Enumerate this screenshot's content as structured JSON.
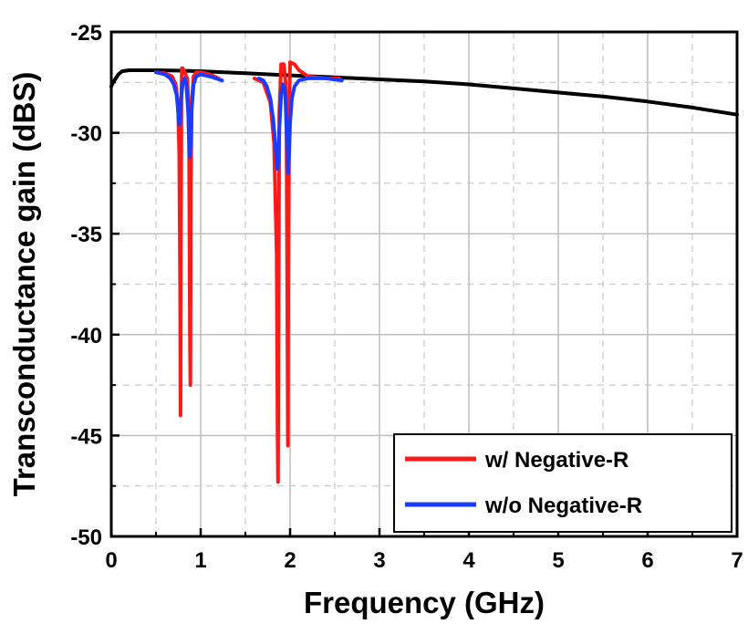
{
  "chart_data": {
    "type": "line",
    "title": "",
    "xlabel": "Frequency (GHz)",
    "ylabel": "Transconductance gain (dBS)",
    "xlim": [
      0,
      7
    ],
    "ylim": [
      -50,
      -25
    ],
    "xticks": [
      0,
      1,
      2,
      3,
      4,
      5,
      6,
      7
    ],
    "yticks": [
      -25,
      -30,
      -35,
      -40,
      -45,
      -50
    ],
    "xtick_labels": [
      "0",
      "1",
      "2",
      "3",
      "4",
      "5",
      "6",
      "7"
    ],
    "ytick_labels": [
      "-25",
      "-30",
      "-35",
      "-40",
      "-45",
      "-50"
    ],
    "grid": true,
    "legend_position": "bottom-right",
    "legend_entries": [
      "w/ Negative-R",
      "w/o Negative-R"
    ],
    "series": [
      {
        "name": "w/ Negative-R",
        "color": "#ff1a1a",
        "legend": true,
        "segments": [
          {
            "x": [
              0.5,
              0.6,
              0.68,
              0.72,
              0.745,
              0.76,
              0.77,
              0.775,
              0.78,
              0.785,
              0.79,
              0.8,
              0.82,
              0.85,
              0.86,
              0.87,
              0.88,
              0.885,
              0.89,
              0.9,
              0.92,
              0.95,
              1.0,
              1.1,
              1.2
            ],
            "y": [
              -27.0,
              -27.05,
              -27.2,
              -27.6,
              -28.5,
              -31.0,
              -38.0,
              -44.0,
              -35.0,
              -28.0,
              -26.8,
              -26.8,
              -27.0,
              -27.3,
              -28.2,
              -31.0,
              -40.0,
              -42.5,
              -33.0,
              -28.5,
              -27.2,
              -27.0,
              -27.0,
              -27.1,
              -27.3
            ]
          },
          {
            "x": [
              1.6,
              1.7,
              1.78,
              1.82,
              1.85,
              1.86,
              1.865,
              1.87,
              1.88,
              1.9,
              1.93,
              1.95,
              1.96,
              1.97,
              1.975,
              1.98,
              1.99,
              2.0,
              2.05,
              2.1,
              2.2,
              2.4,
              2.55
            ],
            "y": [
              -27.3,
              -27.5,
              -28.5,
              -30.5,
              -36.0,
              -45.0,
              -47.3,
              -40.0,
              -29.0,
              -26.6,
              -26.6,
              -27.5,
              -30.0,
              -40.0,
              -45.5,
              -38.0,
              -29.0,
              -26.5,
              -26.6,
              -26.9,
              -27.2,
              -27.3,
              -27.3
            ]
          }
        ]
      },
      {
        "name": "w/o Negative-R",
        "color": "#1a3cff",
        "legend": true,
        "segments": [
          {
            "x": [
              0.5,
              0.6,
              0.66,
              0.7,
              0.73,
              0.75,
              0.76,
              0.77,
              0.78,
              0.8,
              0.82,
              0.84,
              0.86,
              0.87,
              0.88,
              0.89,
              0.9,
              0.92,
              0.95,
              1.0,
              1.1,
              1.24
            ],
            "y": [
              -27.0,
              -27.1,
              -27.3,
              -27.6,
              -28.1,
              -29.0,
              -29.6,
              -29.4,
              -28.4,
              -27.5,
              -27.3,
              -27.6,
              -29.0,
              -30.4,
              -31.2,
              -30.3,
              -28.8,
              -27.6,
              -27.2,
              -27.1,
              -27.2,
              -27.4
            ]
          },
          {
            "x": [
              1.65,
              1.7,
              1.74,
              1.78,
              1.81,
              1.83,
              1.85,
              1.86,
              1.87,
              1.88,
              1.9,
              1.92,
              1.94,
              1.95,
              1.96,
              1.97,
              1.98,
              1.99,
              2.0,
              2.02,
              2.05,
              2.1,
              2.2,
              2.4,
              2.58
            ],
            "y": [
              -27.3,
              -27.4,
              -27.7,
              -28.3,
              -29.3,
              -30.3,
              -31.4,
              -31.8,
              -31.2,
              -29.8,
              -28.1,
              -27.6,
              -27.8,
              -28.5,
              -29.8,
              -31.5,
              -32.0,
              -31.0,
              -29.5,
              -28.3,
              -27.7,
              -27.4,
              -27.3,
              -27.3,
              -27.4
            ]
          }
        ]
      },
      {
        "name": "",
        "color": "#000000",
        "legend": false,
        "segments": [
          {
            "x": [
              0.0,
              0.02,
              0.05,
              0.08,
              0.12,
              0.2,
              0.3,
              0.5,
              0.8,
              1.0,
              1.5,
              2.0,
              2.5,
              3.0,
              3.5,
              4.0,
              4.5,
              5.0,
              5.5,
              6.0,
              6.5,
              7.0
            ],
            "y": [
              -27.7,
              -27.5,
              -27.3,
              -27.1,
              -26.95,
              -26.9,
              -26.9,
              -26.9,
              -26.92,
              -26.95,
              -27.05,
              -27.15,
              -27.25,
              -27.35,
              -27.45,
              -27.6,
              -27.8,
              -28.0,
              -28.2,
              -28.45,
              -28.75,
              -29.1
            ]
          }
        ]
      }
    ]
  }
}
